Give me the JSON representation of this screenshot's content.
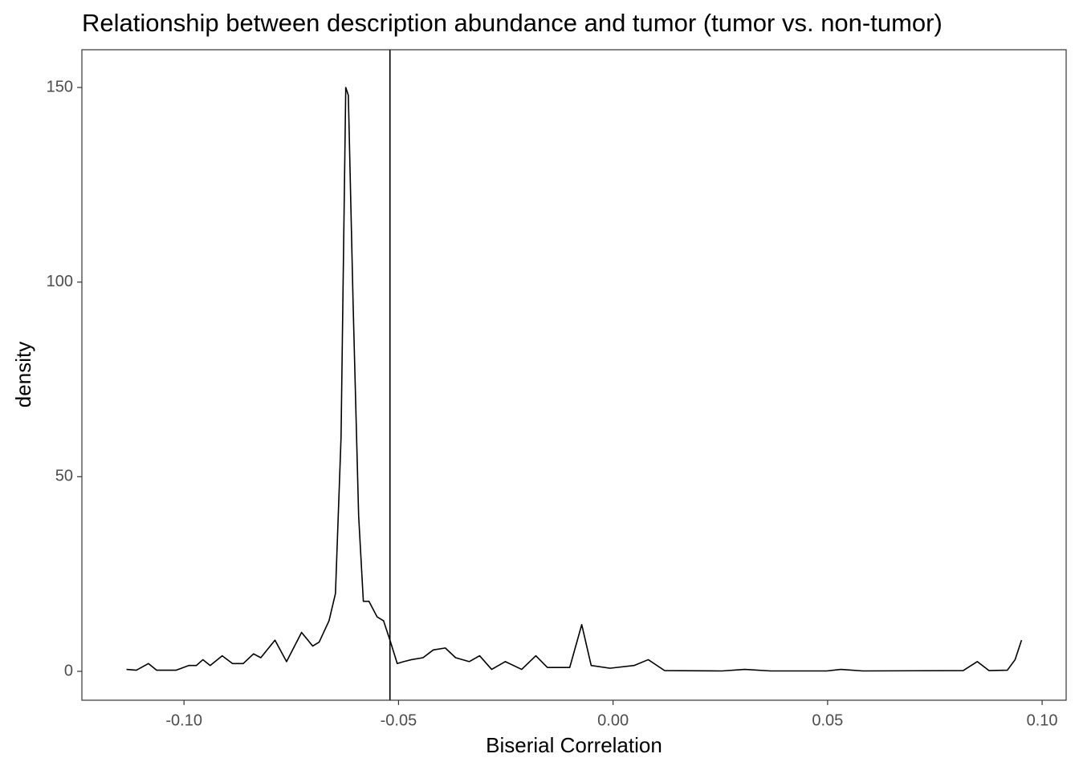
{
  "chart_data": {
    "type": "line",
    "title": "Relationship between description abundance and tumor (tumor vs. non-tumor)",
    "x_label": "Biserial Correlation",
    "y_label": "density",
    "x": [
      -0.1134,
      -0.1111,
      -0.1083,
      -0.1064,
      -0.1018,
      -0.0989,
      -0.0971,
      -0.0956,
      -0.0939,
      -0.0911,
      -0.0887,
      -0.0862,
      -0.0838,
      -0.0821,
      -0.0788,
      -0.0761,
      -0.0726,
      -0.07,
      -0.0685,
      -0.0662,
      -0.0647,
      -0.0634,
      -0.0623,
      -0.0617,
      -0.0606,
      -0.0593,
      -0.0582,
      -0.0569,
      -0.055,
      -0.0535,
      -0.052,
      -0.0503,
      -0.0488,
      -0.047,
      -0.0443,
      -0.0419,
      -0.0391,
      -0.0367,
      -0.0335,
      -0.0311,
      -0.0283,
      -0.0251,
      -0.0213,
      -0.018,
      -0.0153,
      -0.0101,
      -0.0073,
      -0.0051,
      -0.0007,
      0.0049,
      0.0082,
      0.012,
      0.0254,
      0.0307,
      0.0367,
      0.0498,
      0.0531,
      0.0582,
      0.0816,
      0.0849,
      0.0876,
      0.0919,
      0.0937,
      0.0952
    ],
    "series": [
      {
        "name": "density",
        "color": "#000000",
        "values": [
          0.5,
          0.3,
          2,
          0.3,
          0.3,
          1.5,
          1.5,
          3,
          1.5,
          4,
          2,
          2,
          4.5,
          3.5,
          8,
          2.5,
          10,
          6.5,
          7.5,
          13,
          20,
          60,
          150,
          148,
          95,
          40,
          18,
          18,
          14,
          13,
          8,
          2,
          2.5,
          3,
          3.5,
          5.5,
          6,
          3.5,
          2.5,
          4,
          0.5,
          2.5,
          0.5,
          4,
          1,
          1,
          12,
          1.5,
          0.8,
          1.5,
          3,
          0.2,
          0.1,
          0.5,
          0.1,
          0.1,
          0.5,
          0.1,
          0.2,
          2.5,
          0.2,
          0.3,
          3,
          8
        ]
      }
    ],
    "vline": -0.052,
    "xlim": [
      -0.1238,
      0.1056
    ],
    "ylim": [
      -7.42,
      159.7
    ],
    "xticks": [
      {
        "value": -0.1,
        "label": "-0.10"
      },
      {
        "value": -0.05,
        "label": "-0.05"
      },
      {
        "value": 0,
        "label": "0.00"
      },
      {
        "value": 0.05,
        "label": "0.05"
      },
      {
        "value": 0.1,
        "label": "0.10"
      }
    ],
    "yticks": [
      0,
      50,
      100,
      150
    ],
    "grid": false
  }
}
